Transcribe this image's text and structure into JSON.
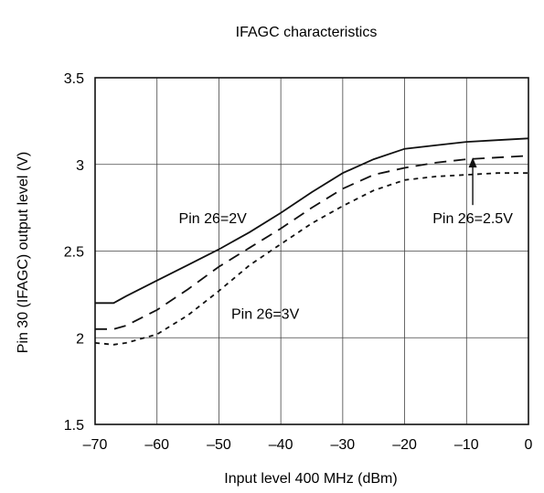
{
  "chart_data": {
    "type": "line",
    "title": "IFAGC characteristics",
    "xlabel": "Input level 400 MHz (dBm)",
    "ylabel": "Pin 30 (IFAGC) output level (V)",
    "xlim": [
      -70,
      0
    ],
    "ylim": [
      1.5,
      3.5
    ],
    "x_ticks": [
      -70,
      -60,
      -50,
      -40,
      -30,
      -20,
      -10,
      0
    ],
    "x_tick_labels": [
      "–70",
      "–60",
      "–50",
      "–40",
      "–30",
      "–20",
      "–10",
      "0"
    ],
    "y_ticks": [
      1.5,
      2,
      2.5,
      3,
      3.5
    ],
    "y_tick_labels": [
      "1.5",
      "2",
      "2.5",
      "3",
      "3.5"
    ],
    "grid": true,
    "series": [
      {
        "name": "Pin 26=2V",
        "dash": "solid",
        "x": [
          -70,
          -67,
          -65,
          -60,
          -55,
          -50,
          -45,
          -40,
          -35,
          -30,
          -25,
          -20,
          -15,
          -10,
          -5,
          0
        ],
        "y": [
          2.2,
          2.2,
          2.24,
          2.33,
          2.42,
          2.51,
          2.61,
          2.72,
          2.84,
          2.95,
          3.03,
          3.09,
          3.11,
          3.13,
          3.14,
          3.15
        ]
      },
      {
        "name": "Pin 26=2.5V",
        "dash": "long-dash",
        "x": [
          -70,
          -67,
          -65,
          -60,
          -55,
          -50,
          -45,
          -40,
          -35,
          -30,
          -25,
          -20,
          -15,
          -10,
          -5,
          0
        ],
        "y": [
          2.05,
          2.05,
          2.07,
          2.16,
          2.28,
          2.41,
          2.52,
          2.63,
          2.75,
          2.86,
          2.94,
          2.98,
          3.01,
          3.03,
          3.04,
          3.05
        ]
      },
      {
        "name": "Pin 26=3V",
        "dash": "short-dash",
        "x": [
          -70,
          -67,
          -65,
          -60,
          -55,
          -50,
          -45,
          -40,
          -35,
          -30,
          -25,
          -20,
          -15,
          -10,
          -5,
          0
        ],
        "y": [
          1.97,
          1.96,
          1.97,
          2.02,
          2.13,
          2.27,
          2.42,
          2.54,
          2.66,
          2.76,
          2.85,
          2.91,
          2.93,
          2.94,
          2.95,
          2.95
        ]
      }
    ],
    "annotations": [
      {
        "text": "Pin 26=2V",
        "x": -51,
        "y": 2.66,
        "anchor": "middle"
      },
      {
        "text": "Pin 26=3V",
        "x": -48,
        "y": 2.11,
        "anchor": "start"
      },
      {
        "text": "Pin 26=2.5V",
        "x": -9,
        "y": 2.66,
        "anchor": "middle",
        "arrow_to": [
          -9,
          3.04
        ]
      }
    ]
  }
}
